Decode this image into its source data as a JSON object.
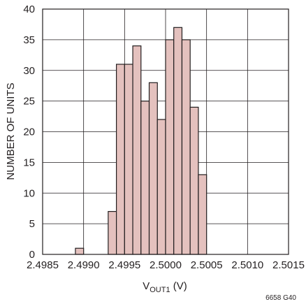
{
  "chart_data": {
    "type": "bar",
    "title": "",
    "xlabel": {
      "main": "V",
      "subscript": "OUT1",
      "unit": " (V)"
    },
    "ylabel": "NUMBER OF UNITS",
    "figure_id": "6658 G40",
    "xlim": [
      2.4985,
      2.5015
    ],
    "ylim": [
      0,
      40
    ],
    "bin_width": 0.0001,
    "xticks": [
      "2.4985",
      "2.4990",
      "2.4995",
      "2.5000",
      "2.5005",
      "2.5010",
      "2.5015"
    ],
    "yticks": [
      "0",
      "5",
      "10",
      "15",
      "20",
      "25",
      "30",
      "35",
      "40"
    ],
    "grid": true,
    "bars": [
      {
        "x": 2.49895,
        "value": 1
      },
      {
        "x": 2.49935,
        "value": 7
      },
      {
        "x": 2.49945,
        "value": 31
      },
      {
        "x": 2.49955,
        "value": 31
      },
      {
        "x": 2.49965,
        "value": 34
      },
      {
        "x": 2.49975,
        "value": 25
      },
      {
        "x": 2.49985,
        "value": 28
      },
      {
        "x": 2.49995,
        "value": 22
      },
      {
        "x": 2.50005,
        "value": 35
      },
      {
        "x": 2.50015,
        "value": 37
      },
      {
        "x": 2.50025,
        "value": 35
      },
      {
        "x": 2.50035,
        "value": 24
      },
      {
        "x": 2.50045,
        "value": 13
      }
    ],
    "colors": {
      "bar_fill": "#e4c1be",
      "stroke": "#231f20",
      "grid": "#231f20"
    }
  }
}
